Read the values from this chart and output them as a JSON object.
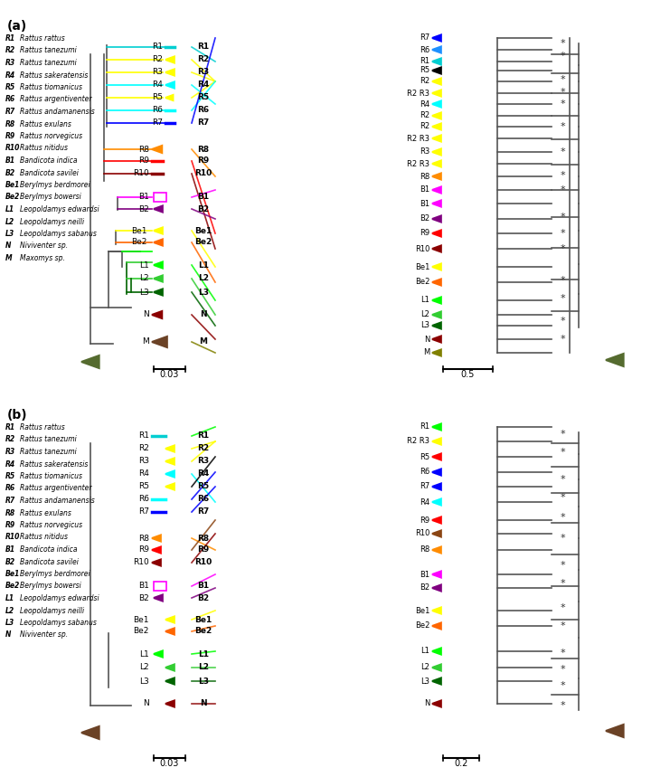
{
  "fig_width": 7.2,
  "fig_height": 8.59,
  "panel_a_label": "(a)",
  "panel_b_label": "(b)",
  "species_list_a": [
    "R1 Rattus rattus",
    "R2 Rattus tanezumi",
    "R3 Rattus tanezumi",
    "R4 Rattus sakeratensis",
    "R5 Rattus tiomanicus",
    "R6 Rattus argentiventer",
    "R7 Rattus andamanensis",
    "R8 Rattus exulans",
    "R9 Rattus norvegicus",
    "R10 Rattus nitidus",
    "B1 Bandicota indica",
    "B2 Bandicota savilei",
    "Be1 Berylmys berdmorei",
    "Be2 Berylmys bowersi",
    "L1 Leopoldamys edwardsi",
    "L2 Leopoldamys neilli",
    "L3 Leopoldamys sabanus",
    "N Niviventer sp.",
    "M Maxomys sp."
  ],
  "species_list_b": [
    "R1 Rattus rattus",
    "R2 Rattus tanezumi",
    "R3 Rattus tanezumi",
    "R4 Rattus sakeratensis",
    "R5 Rattus tiomanicus",
    "R6 Rattus argentiventer",
    "R7 Rattus andamanensis",
    "R8 Rattus exulans",
    "R9 Rattus norvegicus",
    "R10 Rattus nitidus",
    "B1 Bandicota indica",
    "B2 Bandicota savilei",
    "Be1 Berylmys berdmorei",
    "Be2 Berylmys bowersi",
    "L1 Leopoldamys edwardsi",
    "L2 Leopoldamys neilli",
    "L3 Leopoldamys sabanus",
    "N Niviventer sp."
  ],
  "taxa_colors": {
    "R1": "#00ced1",
    "R2": "#ffff00",
    "R3": "#ffff00",
    "R4": "#00ffff",
    "R5": "#ffff00",
    "R6": "#00ffff",
    "R7": "#0000ff",
    "R8": "#ff8c00",
    "R9": "#ff0000",
    "R10": "#8b0000",
    "B1": "#ff00ff",
    "B2": "#800080",
    "Be1": "#ffff00",
    "Be2": "#ff6600",
    "L1": "#00ff00",
    "L2": "#32cd32",
    "L3": "#006400",
    "N": "#8b0000",
    "M": "#808000"
  },
  "scale_a_left": "0.03",
  "scale_a_right": "0.5",
  "scale_b_left": "0.03",
  "scale_b_right": "0.2"
}
